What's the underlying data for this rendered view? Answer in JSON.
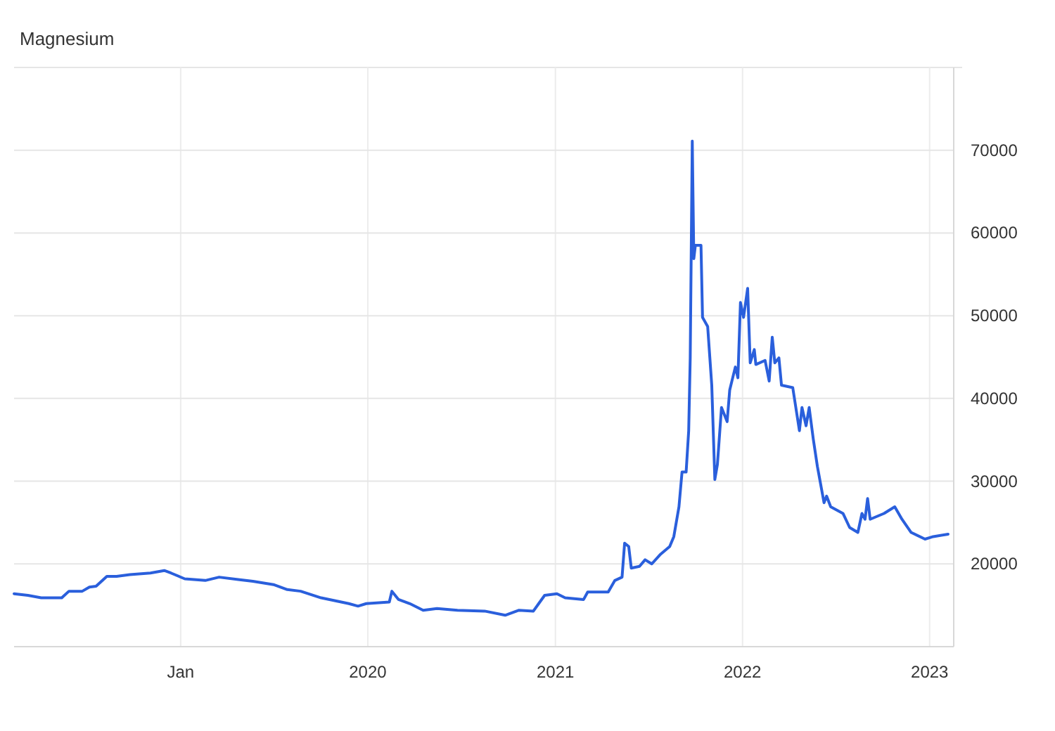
{
  "chart_data": {
    "type": "line",
    "title": "Magnesium",
    "x": [
      "2018-02-10",
      "2018-03-09",
      "2018-04-04",
      "2018-05-14",
      "2018-05-28",
      "2018-06-23",
      "2018-07-07",
      "2018-07-20",
      "2018-08-10",
      "2018-08-29",
      "2018-09-24",
      "2018-11-03",
      "2018-11-30",
      "2018-12-13",
      "2019-01-09",
      "2019-02-18",
      "2019-03-17",
      "2019-04-26",
      "2019-05-22",
      "2019-07-01",
      "2019-07-28",
      "2019-08-23",
      "2019-10-02",
      "2019-11-25",
      "2019-12-13",
      "2019-12-29",
      "2020-02-12",
      "2020-02-17",
      "2020-03-01",
      "2020-03-23",
      "2020-04-18",
      "2020-05-15",
      "2020-06-24",
      "2020-08-16",
      "2020-09-25",
      "2020-10-22",
      "2020-11-19",
      "2020-12-11",
      "2021-01-04",
      "2021-01-20",
      "2021-02-25",
      "2021-03-05",
      "2021-04-14",
      "2021-04-27",
      "2021-05-11",
      "2021-05-16",
      "2021-05-24",
      "2021-05-29",
      "2021-06-14",
      "2021-06-25",
      "2021-07-08",
      "2021-07-24",
      "2021-08-12",
      "2021-08-20",
      "2021-08-30",
      "2021-09-05",
      "2021-09-13",
      "2021-09-18",
      "2021-09-21",
      "2021-09-25",
      "2021-09-28",
      "2021-10-01",
      "2021-10-12",
      "2021-10-15",
      "2021-10-25",
      "2021-11-02",
      "2021-11-08",
      "2021-11-13",
      "2021-11-21",
      "2021-12-02",
      "2021-12-07",
      "2021-12-18",
      "2021-12-23",
      "2021-12-28",
      "2022-01-03",
      "2022-01-11",
      "2022-01-16",
      "2022-01-24",
      "2022-01-27",
      "2022-02-14",
      "2022-02-22",
      "2022-02-28",
      "2022-03-05",
      "2022-03-13",
      "2022-03-18",
      "2022-04-09",
      "2022-04-22",
      "2022-04-27",
      "2022-05-05",
      "2022-05-11",
      "2022-05-19",
      "2022-05-27",
      "2022-06-09",
      "2022-06-14",
      "2022-06-22",
      "2022-07-16",
      "2022-07-29",
      "2022-08-14",
      "2022-08-22",
      "2022-08-28",
      "2022-09-02",
      "2022-09-07",
      "2022-10-04",
      "2022-10-25",
      "2022-11-08",
      "2022-11-26",
      "2022-12-23",
      "2023-01-08",
      "2023-02-06"
    ],
    "values": [
      16400,
      16200,
      15900,
      15900,
      16700,
      16700,
      17200,
      17300,
      18500,
      18500,
      18700,
      18900,
      19200,
      18900,
      18200,
      18000,
      18400,
      18100,
      17900,
      17500,
      16900,
      16700,
      15900,
      15200,
      14900,
      15200,
      15400,
      16700,
      15700,
      15200,
      14400,
      14600,
      14400,
      14300,
      13800,
      14400,
      14300,
      16200,
      16400,
      15900,
      15700,
      16600,
      16600,
      18000,
      18400,
      22500,
      22100,
      19500,
      19700,
      20500,
      20000,
      21100,
      22100,
      23300,
      26900,
      31100,
      31100,
      36100,
      44900,
      71100,
      56900,
      58500,
      58500,
      49800,
      48700,
      41600,
      30200,
      32000,
      38900,
      37200,
      41000,
      43800,
      42500,
      51600,
      49800,
      53300,
      44300,
      45900,
      44100,
      44600,
      42100,
      47400,
      44300,
      44900,
      41600,
      41300,
      36100,
      38900,
      36700,
      38900,
      35100,
      31800,
      27400,
      28200,
      26900,
      26100,
      24400,
      23800,
      26100,
      25400,
      27900,
      25400,
      26100,
      26900,
      25400,
      23800,
      23000,
      23300,
      23600
    ],
    "color": "#2a5fdc",
    "xlim": [
      "2018-02-10",
      "2023-02-17"
    ],
    "xticks": [
      {
        "value": "2019-01-01",
        "label": "Jan"
      },
      {
        "value": "2020-01-01",
        "label": "2020"
      },
      {
        "value": "2021-01-01",
        "label": "2021"
      },
      {
        "value": "2022-01-01",
        "label": "2022"
      },
      {
        "value": "2023-01-01",
        "label": "2023"
      }
    ],
    "ylim": [
      10000,
      80000
    ],
    "yticks": [
      20000,
      30000,
      40000,
      50000,
      60000,
      70000
    ],
    "grid": true
  }
}
